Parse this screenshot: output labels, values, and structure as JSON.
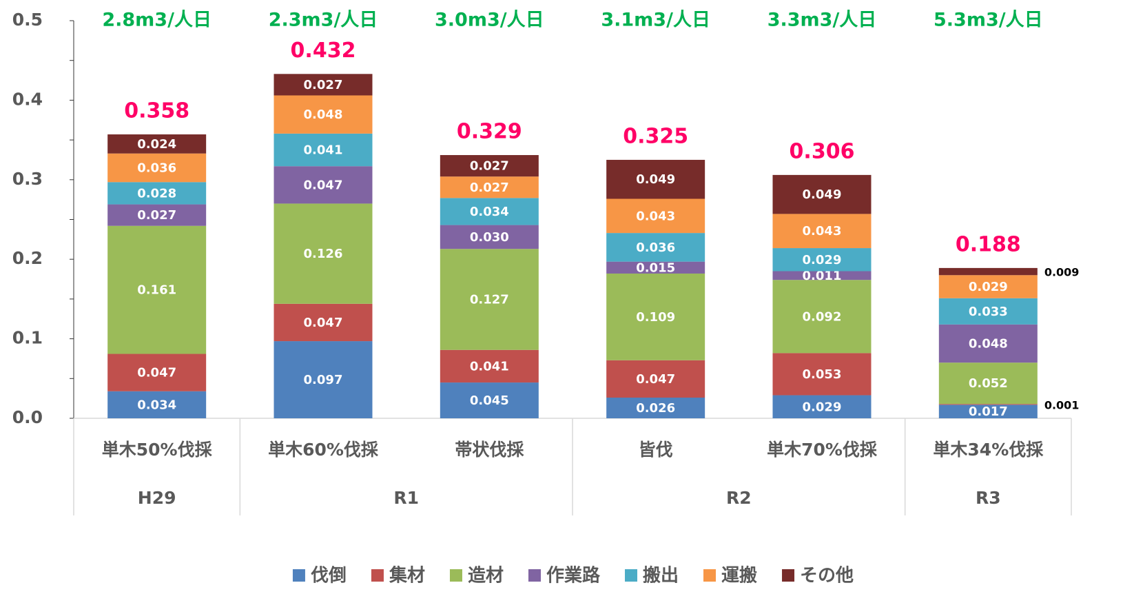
{
  "chart_data": {
    "type": "stacked_bar",
    "categories": [
      "単木50%伐採",
      "単木60%伐採",
      "帯状伐採",
      "皆伐",
      "単木70%伐採",
      "単木34%伐採"
    ],
    "group_labels": [
      "H29",
      "R1",
      null,
      "R2",
      null,
      "R3"
    ],
    "productivity": [
      "2.8m3/人日",
      "2.3m3/人日",
      "3.0m3/人日",
      "3.1m3/人日",
      "3.3m3/人日",
      "5.3m3/人日"
    ],
    "totals": [
      0.358,
      0.432,
      0.329,
      0.325,
      0.306,
      0.188
    ],
    "series": [
      {
        "name": "伐倒",
        "color": "#4f81bd",
        "values": [
          0.034,
          0.097,
          0.045,
          0.026,
          0.029,
          0.017
        ],
        "value_labels": [
          "0.034",
          "0.097",
          "0.045",
          "0.026",
          "0.029",
          "0.017"
        ]
      },
      {
        "name": "集材",
        "color": "#c0504d",
        "values": [
          0.047,
          0.047,
          0.041,
          0.047,
          0.053,
          0.001
        ],
        "value_labels": [
          "0.047",
          "0.047",
          "0.041",
          "0.047",
          "0.053",
          "0.001"
        ]
      },
      {
        "name": "造材",
        "color": "#9bbb59",
        "values": [
          0.161,
          0.126,
          0.127,
          0.109,
          0.092,
          0.052
        ],
        "value_labels": [
          "0.161",
          "0.126",
          "0.127",
          "0.109",
          "0.092",
          "0.052"
        ]
      },
      {
        "name": "作業路",
        "color": "#8064a2",
        "values": [
          0.027,
          0.047,
          0.03,
          0.015,
          0.011,
          0.048
        ],
        "value_labels": [
          "0.027",
          "0.047",
          "0.030",
          "0.015",
          "0.011",
          "0.048"
        ]
      },
      {
        "name": "搬出",
        "color": "#4bacc6",
        "values": [
          0.028,
          0.041,
          0.034,
          0.036,
          0.029,
          0.033
        ],
        "value_labels": [
          "0.028",
          "0.041",
          "0.034",
          "0.036",
          "0.029",
          "0.033"
        ]
      },
      {
        "name": "運搬",
        "color": "#f79646",
        "values": [
          0.036,
          0.048,
          0.027,
          0.043,
          0.043,
          0.029
        ],
        "value_labels": [
          "0.036",
          "0.048",
          "0.027",
          "0.043",
          "0.043",
          "0.029"
        ]
      },
      {
        "name": "その他",
        "color": "#772c2a",
        "values": [
          0.024,
          0.027,
          0.027,
          0.049,
          0.049,
          0.009
        ],
        "value_labels": [
          "0.024",
          "0.027",
          "0.027",
          "0.049",
          "0.049",
          "0.009"
        ]
      }
    ],
    "ylim": [
      0,
      0.5
    ],
    "yticks": [
      {
        "value": 0,
        "label": "0.0"
      },
      0.1,
      0.2,
      0.3,
      0.4,
      0.5
    ],
    "legend": "bottom"
  }
}
